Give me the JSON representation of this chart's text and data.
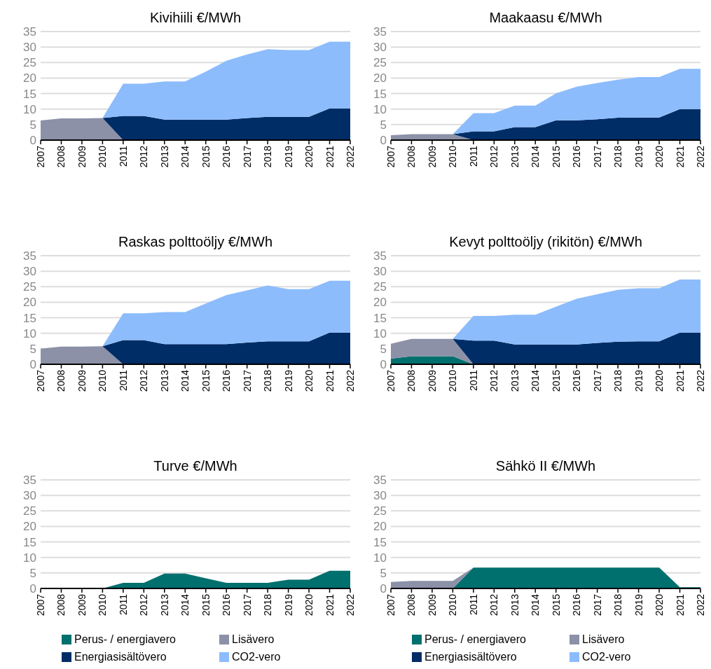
{
  "chart_data": [
    {
      "type": "area",
      "title": "Kivihiili €/MWh",
      "stacked": true,
      "grid": "y",
      "ylim": [
        0,
        35
      ],
      "yticks": [
        0,
        5,
        10,
        15,
        20,
        25,
        30,
        35
      ],
      "categories": [
        "2007",
        "2008",
        "2009",
        "2010",
        "2011",
        "2012",
        "2013",
        "2014",
        "2015",
        "2016",
        "2017",
        "2018",
        "2019",
        "2020",
        "2021",
        "2022"
      ],
      "series": [
        {
          "color": "#8c91a8",
          "values": [
            6.3,
            7.0,
            7.0,
            7.1,
            0,
            0,
            0,
            0,
            0,
            0,
            0,
            0,
            0,
            0,
            0,
            0
          ]
        },
        {
          "color": "#002d66",
          "values": [
            0,
            0,
            0,
            0,
            7.8,
            7.8,
            6.6,
            6.6,
            6.6,
            6.6,
            7.1,
            7.5,
            7.5,
            7.5,
            10.2,
            10.2
          ]
        },
        {
          "color": "#8cbcfc",
          "values": [
            0,
            0,
            0,
            0,
            10.4,
            10.4,
            12.3,
            12.3,
            15.5,
            19.0,
            20.5,
            21.8,
            21.5,
            21.5,
            21.5,
            21.5
          ]
        }
      ]
    },
    {
      "type": "area",
      "title": "Maakaasu €/MWh",
      "stacked": true,
      "grid": "y",
      "ylim": [
        0,
        35
      ],
      "yticks": [
        0,
        5,
        10,
        15,
        20,
        25,
        30,
        35
      ],
      "categories": [
        "2007",
        "2008",
        "2009",
        "2010",
        "2011",
        "2012",
        "2013",
        "2014",
        "2015",
        "2016",
        "2017",
        "2018",
        "2019",
        "2020",
        "2021",
        "2022"
      ],
      "series": [
        {
          "color": "#8c91a8",
          "values": [
            1.6,
            1.9,
            1.9,
            1.9,
            0,
            0,
            0,
            0,
            0,
            0,
            0,
            0,
            0,
            0,
            0,
            0
          ]
        },
        {
          "color": "#002d66",
          "values": [
            0,
            0,
            0,
            0,
            2.8,
            2.8,
            4.2,
            4.2,
            6.4,
            6.4,
            6.7,
            7.2,
            7.3,
            7.3,
            10.0,
            10.0
          ]
        },
        {
          "color": "#8cbcfc",
          "values": [
            0,
            0,
            0,
            0,
            5.9,
            5.9,
            6.9,
            6.9,
            8.7,
            10.8,
            11.7,
            12.3,
            13.0,
            13.0,
            13.0,
            13.0
          ]
        }
      ]
    },
    {
      "type": "area",
      "title": "Raskas polttoöljy €/MWh",
      "stacked": true,
      "grid": "y",
      "ylim": [
        0,
        35
      ],
      "yticks": [
        0,
        5,
        10,
        15,
        20,
        25,
        30,
        35
      ],
      "categories": [
        "2007",
        "2008",
        "2009",
        "2010",
        "2011",
        "2012",
        "2013",
        "2014",
        "2015",
        "2016",
        "2017",
        "2018",
        "2019",
        "2020",
        "2021",
        "2022"
      ],
      "series": [
        {
          "color": "#8c91a8",
          "values": [
            5.0,
            5.7,
            5.7,
            5.8,
            0,
            0,
            0,
            0,
            0,
            0,
            0,
            0,
            0,
            0,
            0,
            0
          ]
        },
        {
          "color": "#002d66",
          "values": [
            0,
            0,
            0,
            0,
            7.8,
            7.8,
            6.5,
            6.5,
            6.5,
            6.5,
            7.0,
            7.4,
            7.4,
            7.4,
            10.2,
            10.2
          ]
        },
        {
          "color": "#8cbcfc",
          "values": [
            0,
            0,
            0,
            0,
            8.6,
            8.6,
            10.3,
            10.3,
            13.1,
            15.8,
            16.8,
            18.0,
            16.8,
            16.8,
            16.7,
            16.7
          ]
        }
      ]
    },
    {
      "type": "area",
      "title": "Kevyt polttoöljy (rikitön) €/MWh",
      "stacked": true,
      "grid": "y",
      "ylim": [
        0,
        35
      ],
      "yticks": [
        0,
        5,
        10,
        15,
        20,
        25,
        30,
        35
      ],
      "categories": [
        "2007",
        "2008",
        "2009",
        "2010",
        "2011",
        "2012",
        "2013",
        "2014",
        "2015",
        "2016",
        "2017",
        "2018",
        "2019",
        "2020",
        "2021",
        "2022"
      ],
      "series": [
        {
          "color": "#00706e",
          "values": [
            1.8,
            2.6,
            2.6,
            2.6,
            0,
            0,
            0,
            0,
            0,
            0,
            0,
            0,
            0,
            0,
            0,
            0
          ]
        },
        {
          "color": "#8c91a8",
          "values": [
            4.8,
            5.6,
            5.6,
            5.6,
            0,
            0,
            0,
            0,
            0,
            0,
            0,
            0,
            0,
            0,
            0,
            0
          ]
        },
        {
          "color": "#002d66",
          "values": [
            0,
            0,
            0,
            0,
            7.6,
            7.6,
            6.4,
            6.4,
            6.4,
            6.4,
            6.9,
            7.3,
            7.4,
            7.4,
            10.2,
            10.2
          ]
        },
        {
          "color": "#8cbcfc",
          "values": [
            0,
            0,
            0,
            0,
            8.0,
            8.0,
            9.6,
            9.6,
            12.2,
            14.7,
            15.7,
            16.7,
            17.1,
            17.1,
            17.1,
            17.1
          ]
        }
      ]
    },
    {
      "type": "area",
      "title": "Turve €/MWh",
      "stacked": true,
      "grid": "y",
      "legend": "bottom",
      "ylim": [
        0,
        35
      ],
      "yticks": [
        0,
        5,
        10,
        15,
        20,
        25,
        30,
        35
      ],
      "categories": [
        "2007",
        "2008",
        "2009",
        "2010",
        "2011",
        "2012",
        "2013",
        "2014",
        "2015",
        "2016",
        "2017",
        "2018",
        "2019",
        "2020",
        "2021",
        "2022"
      ],
      "series": [
        {
          "name": "Perus- / energiavero",
          "color": "#00706e",
          "values": [
            0,
            0,
            0,
            0,
            1.8,
            1.8,
            4.8,
            4.8,
            3.3,
            1.8,
            1.8,
            1.8,
            2.8,
            2.8,
            5.7,
            5.7
          ]
        },
        {
          "name": "Lisävero",
          "color": "#8c91a8",
          "values": [
            null,
            null,
            null,
            null,
            null,
            null,
            null,
            null,
            null,
            null,
            null,
            null,
            null,
            null,
            null,
            null
          ]
        },
        {
          "name": "Energiasisältövero",
          "color": "#002d66",
          "values": [
            null,
            null,
            null,
            null,
            null,
            null,
            null,
            null,
            null,
            null,
            null,
            null,
            null,
            null,
            null,
            null
          ]
        },
        {
          "name": "CO2-vero",
          "color": "#8cbcfc",
          "values": [
            null,
            null,
            null,
            null,
            null,
            null,
            null,
            null,
            null,
            null,
            null,
            null,
            null,
            null,
            null,
            null
          ]
        }
      ]
    },
    {
      "type": "area",
      "title": "Sähkö II €/MWh",
      "stacked": true,
      "grid": "y",
      "legend": "bottom",
      "ylim": [
        0,
        35
      ],
      "yticks": [
        0,
        5,
        10,
        15,
        20,
        25,
        30,
        35
      ],
      "categories": [
        "2007",
        "2008",
        "2009",
        "2010",
        "2011",
        "2012",
        "2013",
        "2014",
        "2015",
        "2016",
        "2017",
        "2018",
        "2019",
        "2020",
        "2021",
        "2022"
      ],
      "series": [
        {
          "name": "Perus- / energiavero",
          "color": "#00706e",
          "values": [
            0,
            0,
            0,
            0,
            6.7,
            6.7,
            6.7,
            6.7,
            6.7,
            6.7,
            6.7,
            6.7,
            6.7,
            6.7,
            0.4,
            0.4
          ]
        },
        {
          "name": "Lisävero",
          "color": "#8c91a8",
          "values": [
            2.1,
            2.4,
            2.4,
            2.4,
            0,
            null,
            null,
            null,
            null,
            null,
            null,
            null,
            null,
            null,
            null,
            null
          ]
        },
        {
          "name": "Energiasisältövero",
          "color": "#002d66",
          "values": [
            null,
            null,
            null,
            null,
            null,
            null,
            null,
            null,
            null,
            null,
            null,
            null,
            null,
            null,
            null,
            null
          ]
        },
        {
          "name": "CO2-vero",
          "color": "#8cbcfc",
          "values": [
            null,
            null,
            null,
            null,
            null,
            null,
            null,
            null,
            null,
            null,
            null,
            null,
            null,
            null,
            null,
            null
          ]
        }
      ]
    }
  ]
}
